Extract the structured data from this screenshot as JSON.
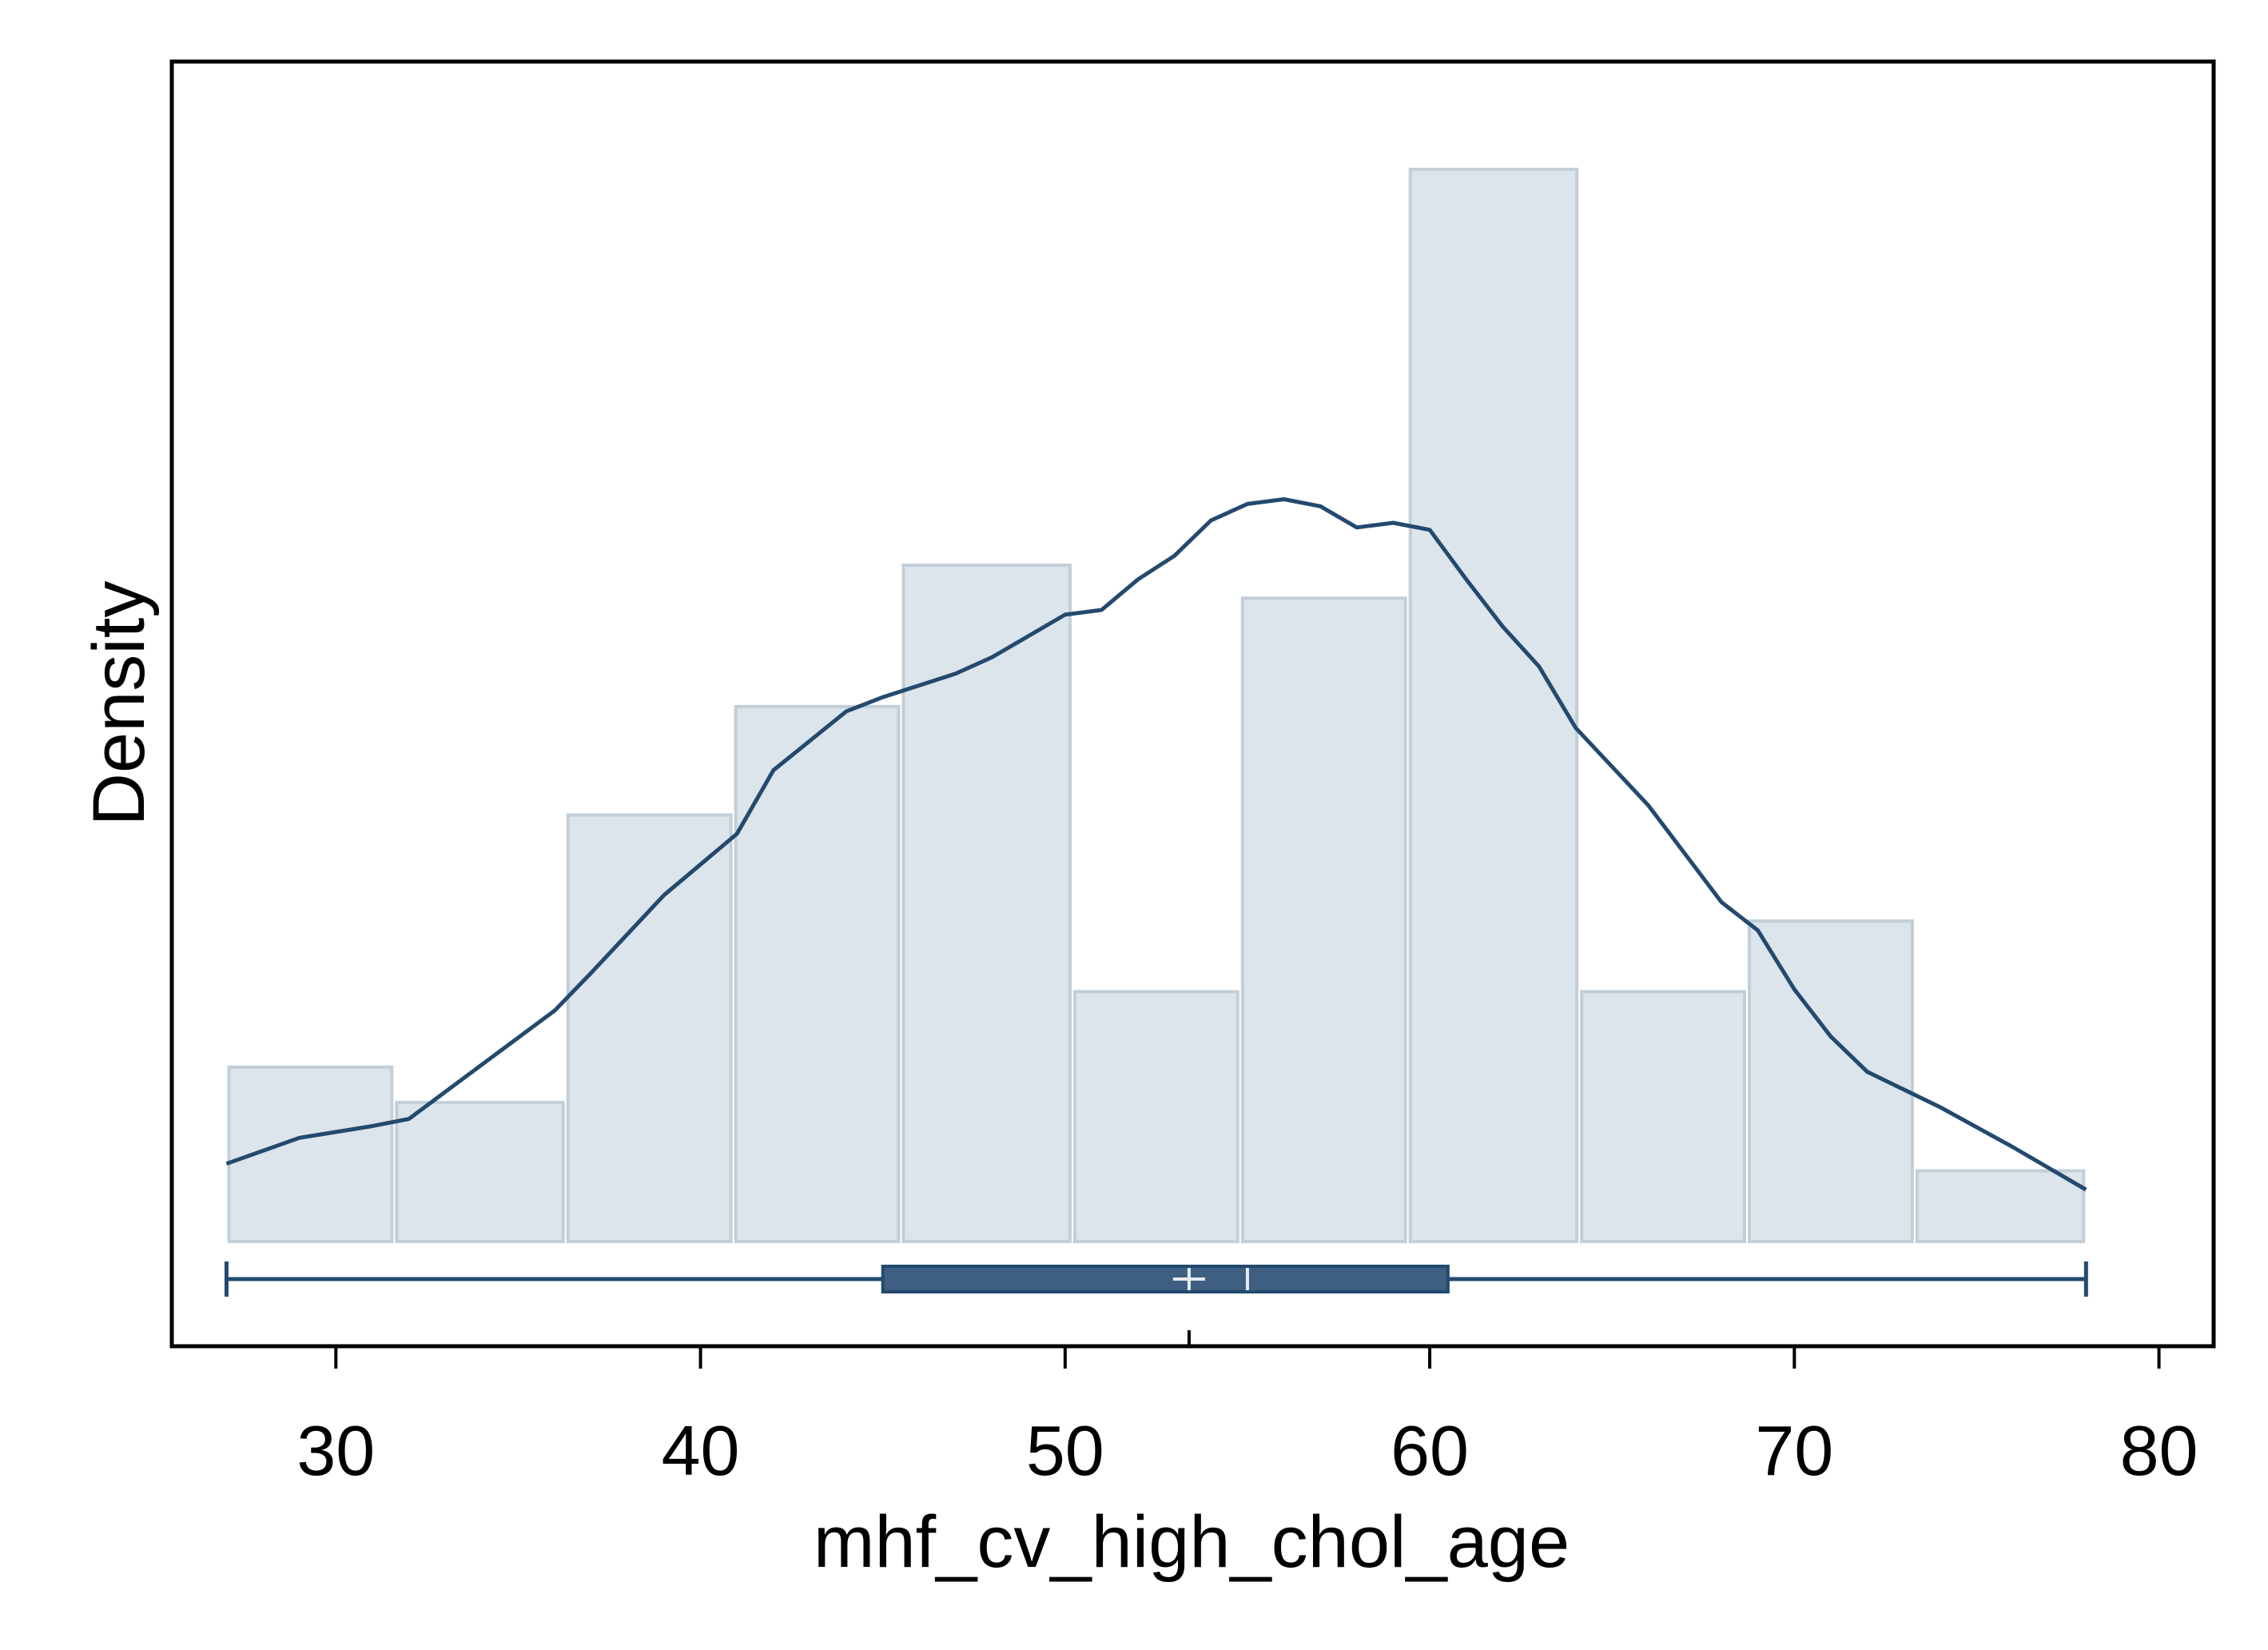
{
  "chart_data": {
    "type": "histogram",
    "title": "",
    "xlabel": "mhf_cv_high_chol_age",
    "ylabel": "Density",
    "xlim": [
      25.5,
      81.5
    ],
    "x_ticks": [
      30,
      40,
      50,
      60,
      70,
      80
    ],
    "x_tick_labels": [
      "30",
      "40",
      "50",
      "60",
      "70",
      "80"
    ],
    "y_ticks_shown": false,
    "grid": false,
    "legend": "none",
    "colors": {
      "bar_fill": "#dce4ec",
      "bar_stroke": "#c2ced8",
      "line": "#234a6e",
      "box_fill": "#3f5f82",
      "box_marks": "#e6ebf0",
      "frame": "#000000"
    },
    "histogram": {
      "bin_edges": [
        27,
        31.6,
        36.3,
        40.9,
        45.5,
        50.2,
        54.8,
        59.4,
        64.1,
        68.7,
        73.3,
        78
      ],
      "heights": [
        0.0074,
        0.0059,
        0.0181,
        0.0227,
        0.0287,
        0.0106,
        0.0273,
        0.0455,
        0.0106,
        0.0136,
        0.003
      ]
    },
    "density_curve": {
      "x": [
        27,
        29,
        31,
        32,
        34,
        36,
        37,
        39,
        41,
        42,
        44,
        45,
        47,
        48,
        50,
        51,
        52,
        53,
        54,
        55,
        56,
        57,
        58,
        59,
        60,
        61,
        62,
        63,
        64,
        66,
        68,
        69,
        70,
        71,
        72,
        74,
        76,
        78
      ],
      "y": [
        0.0033,
        0.0044,
        0.0049,
        0.0052,
        0.0075,
        0.0098,
        0.0114,
        0.0147,
        0.0173,
        0.02,
        0.0225,
        0.0231,
        0.0241,
        0.0248,
        0.0266,
        0.0268,
        0.0281,
        0.0291,
        0.0306,
        0.0313,
        0.0315,
        0.0312,
        0.0303,
        0.0305,
        0.0302,
        0.0281,
        0.0261,
        0.0244,
        0.0218,
        0.0185,
        0.0144,
        0.0132,
        0.0107,
        0.0087,
        0.0072,
        0.0057,
        0.004,
        0.0022
      ]
    },
    "y_max": 0.0478,
    "boxplot": {
      "min": 27,
      "q1": 45,
      "median": 55,
      "mean": 53.4,
      "q3": 60.5,
      "max": 78
    }
  }
}
